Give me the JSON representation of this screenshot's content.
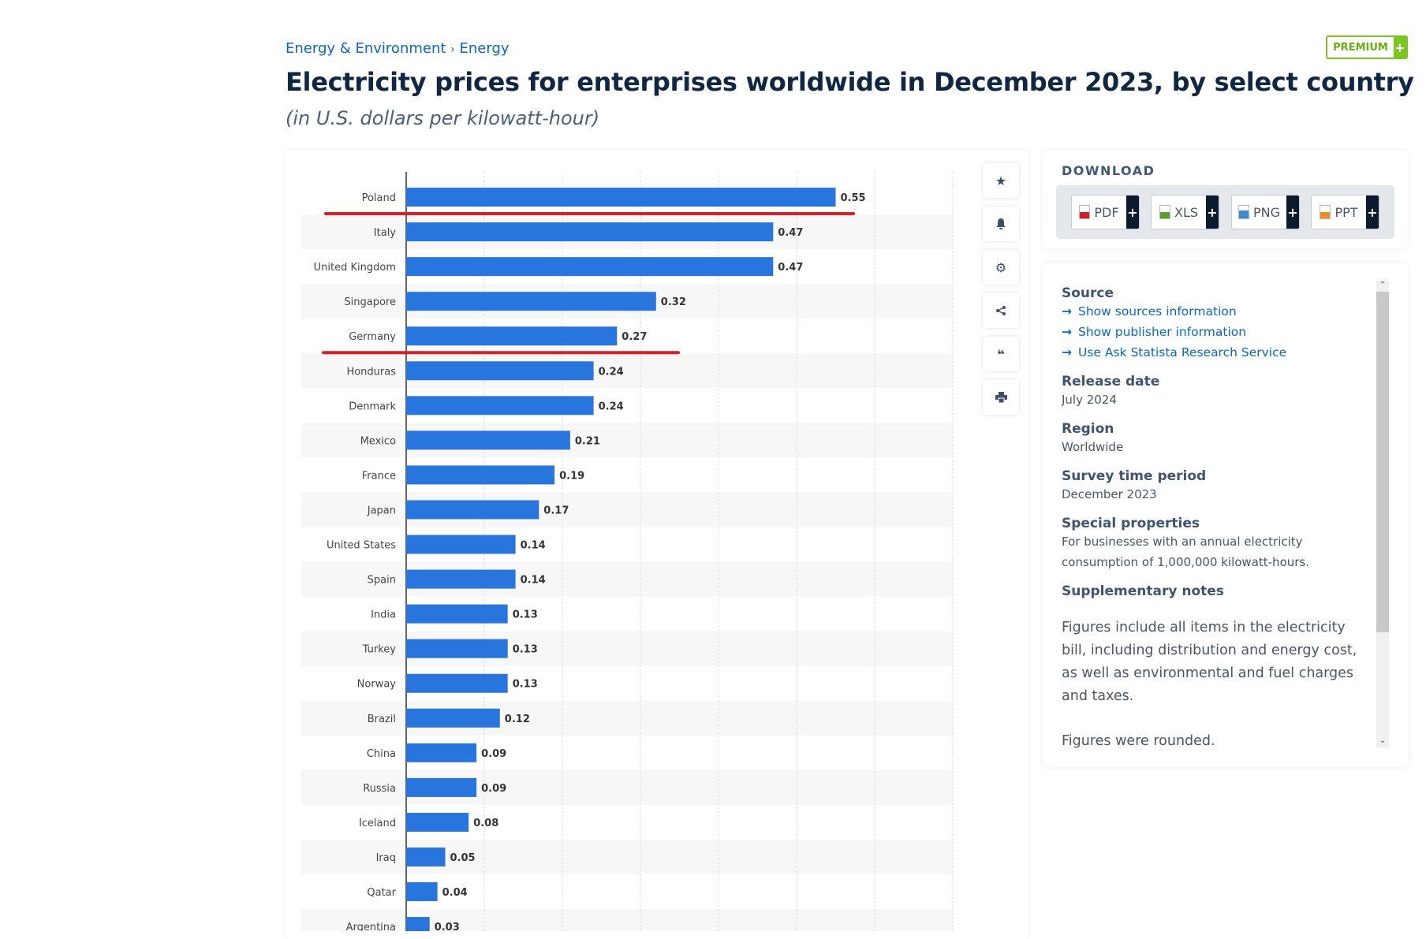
{
  "breadcrumb": {
    "items": [
      "Energy & Environment",
      "Energy"
    ],
    "separator": "›"
  },
  "header": {
    "title": "Electricity prices for enterprises worldwide in December 2023, by select country",
    "subtitle": "(in U.S. dollars per kilowatt-hour)",
    "premium_label": "PREMIUM",
    "premium_plus": "+"
  },
  "toolbar": {
    "icons": [
      "star-icon",
      "bell-icon",
      "gear-icon",
      "share-icon",
      "quote-icon",
      "print-icon"
    ]
  },
  "download": {
    "title": "DOWNLOAD",
    "buttons": [
      {
        "label": "PDF",
        "color": "#d11f26"
      },
      {
        "label": "XLS",
        "color": "#5aa02c"
      },
      {
        "label": "PNG",
        "color": "#3b8bd0"
      },
      {
        "label": "PPT",
        "color": "#f08a24"
      }
    ],
    "plus": "+"
  },
  "info": {
    "source_label": "Source",
    "links": [
      "Show sources information",
      "Show publisher information",
      "Use Ask Statista Research Service"
    ],
    "release_label": "Release date",
    "release": "July 2024",
    "region_label": "Region",
    "region": "Worldwide",
    "period_label": "Survey time period",
    "period": "December 2023",
    "special_label": "Special properties",
    "special": "For businesses with an annual electricity consumption of 1,000,000 kilowatt-hours.",
    "notes_label": "Supplementary notes",
    "notes": "Figures include all items in the electricity bill, including distribution and energy cost, as well as environmental and fuel charges and taxes.",
    "notes2": "Figures were rounded."
  },
  "chart_data": {
    "type": "bar",
    "orientation": "horizontal",
    "categories": [
      "Poland",
      "Italy",
      "United Kingdom",
      "Singapore",
      "Germany",
      "Honduras",
      "Denmark",
      "Mexico",
      "France",
      "Japan",
      "United States",
      "Spain",
      "India",
      "Turkey",
      "Norway",
      "Brazil",
      "China",
      "Russia",
      "Iceland",
      "Iraq",
      "Qatar",
      "Argentina"
    ],
    "values": [
      0.55,
      0.47,
      0.47,
      0.32,
      0.27,
      0.24,
      0.24,
      0.21,
      0.19,
      0.17,
      0.14,
      0.14,
      0.13,
      0.13,
      0.13,
      0.12,
      0.09,
      0.09,
      0.08,
      0.05,
      0.04,
      0.03
    ],
    "xlim": [
      0,
      0.7
    ],
    "grid": true,
    "bar_color": "#2876dd",
    "annotations": [
      {
        "type": "red-underline",
        "below": "Poland",
        "color": "#dc1f26"
      },
      {
        "type": "red-underline",
        "below": "Germany",
        "color": "#dc1f26"
      }
    ]
  }
}
